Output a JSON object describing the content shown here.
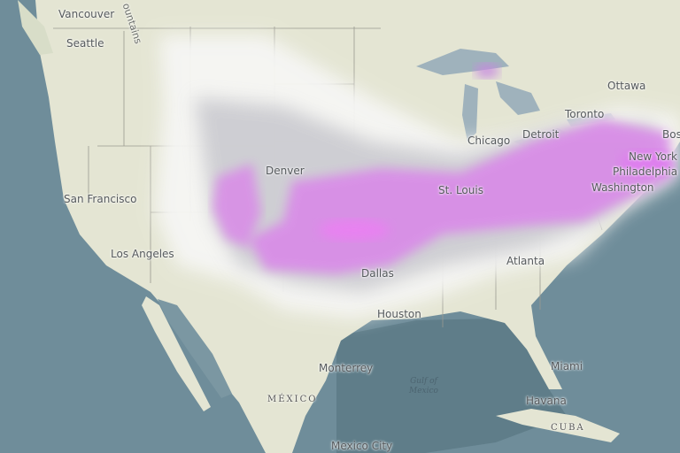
{
  "map": {
    "type": "snowfall-forecast-overlay",
    "colors": {
      "ocean": "#6f8d9a",
      "land": "#e4e5d3",
      "snow_light": "#f4f4f2",
      "snow_gray": "#c9c9cf",
      "snow_heavy": "#d58ae6",
      "snow_max": "#e27ef0"
    },
    "labels": {
      "vancouver": "Vancouver",
      "seattle": "Seattle",
      "mountains": "ountains",
      "san_francisco": "San Francisco",
      "los_angeles": "Los Angeles",
      "denver": "Denver",
      "st_louis": "St. Louis",
      "chicago": "Chicago",
      "detroit": "Detroit",
      "toronto": "Toronto",
      "ottawa": "Ottawa",
      "boston": "Bos",
      "new_york": "New York",
      "philadelphia": "Philadelphia",
      "washington": "Washington",
      "atlanta": "Atlanta",
      "dallas": "Dallas",
      "houston": "Houston",
      "monterrey": "Monterrey",
      "mexico": "MÉXICO",
      "gulf1": "Gulf of",
      "gulf2": "Mexico",
      "miami": "Miami",
      "havana": "Havana",
      "cuba": "CUBA",
      "mexico_city": "Mexico City"
    }
  }
}
